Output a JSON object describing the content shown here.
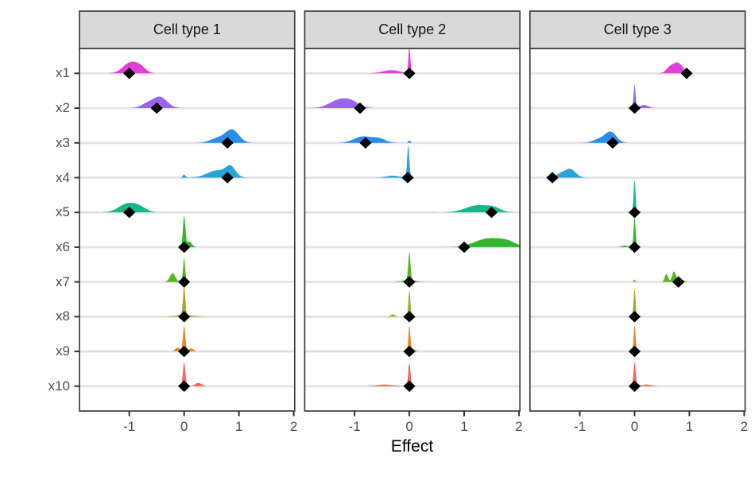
{
  "figure": {
    "background": "#FFFFFF",
    "panel_background": "#FFFFFF",
    "grid_color": "#E6E6E6",
    "panel_border_color": "#3C3C3C",
    "strip_fill": "#D9D9D9",
    "strip_text_color": "#141414",
    "axis_text_color": "#4D4D4D",
    "tick_color": "#333333",
    "point_color": "#000000"
  },
  "chart_data": {
    "type": "ridgeline",
    "title": "",
    "xlabel": "Effect",
    "ylabel": "",
    "legend": "none",
    "grid": "horizontal-major-only",
    "xlim": [
      -1.909,
      2.017
    ],
    "x_tick_values": [
      -1,
      0,
      1,
      2
    ],
    "x_tick_labels": [
      "-1",
      "0",
      "1",
      "2"
    ],
    "categories": [
      "x1",
      "x2",
      "x3",
      "x4",
      "x5",
      "x6",
      "x7",
      "x8",
      "x9",
      "x10"
    ],
    "colors": {
      "x1": "#E33FD7",
      "x2": "#9C63EB",
      "x3": "#2A8DEA",
      "x4": "#28A4DB",
      "x5": "#16B78C",
      "x6": "#2FB62E",
      "x7": "#5BB322",
      "x8": "#A9A42A",
      "x9": "#E08B26",
      "x10": "#F2615C"
    },
    "facets": [
      {
        "label": "Cell type 1",
        "rows": [
          {
            "var": "x1",
            "point": -1.0,
            "bumps": [
              [
                -0.97,
                0.14,
                14
              ],
              [
                -0.78,
                0.09,
                5
              ]
            ]
          },
          {
            "var": "x2",
            "point": -0.5,
            "bumps": [
              [
                -0.44,
                0.13,
                14
              ],
              [
                -0.68,
                0.11,
                5
              ]
            ]
          },
          {
            "var": "x3",
            "point": 0.79,
            "bumps": [
              [
                0.88,
                0.12,
                16
              ],
              [
                0.62,
                0.14,
                6
              ]
            ]
          },
          {
            "var": "x4",
            "point": 0.79,
            "bumps": [
              [
                0.85,
                0.09,
                12
              ],
              [
                0.6,
                0.18,
                9
              ],
              [
                0.0,
                0.025,
                4
              ]
            ]
          },
          {
            "var": "x5",
            "point": -1.0,
            "bumps": [
              [
                -1.03,
                0.16,
                11
              ],
              [
                -0.8,
                0.12,
                5
              ]
            ]
          },
          {
            "var": "x6",
            "point": 0.0,
            "bumps": [
              [
                0.0,
                0.022,
                38
              ],
              [
                0.09,
                0.05,
                7
              ]
            ]
          },
          {
            "var": "x7",
            "point": 0.0,
            "bumps": [
              [
                0.0,
                0.02,
                30
              ],
              [
                -0.21,
                0.05,
                11
              ]
            ]
          },
          {
            "var": "x8",
            "point": 0.0,
            "bumps": [
              [
                0.0,
                0.02,
                36
              ],
              [
                0.0,
                0.15,
                2.5
              ]
            ]
          },
          {
            "var": "x9",
            "point": 0.0,
            "bumps": [
              [
                0.0,
                0.022,
                32
              ],
              [
                -0.12,
                0.04,
                5
              ],
              [
                0.13,
                0.04,
                4
              ]
            ]
          },
          {
            "var": "x10",
            "point": 0.0,
            "bumps": [
              [
                0.0,
                0.022,
                30
              ],
              [
                0.26,
                0.06,
                4
              ]
            ]
          }
        ]
      },
      {
        "label": "Cell type 2",
        "rows": [
          {
            "var": "x1",
            "point": 0.0,
            "bumps": [
              [
                0.0,
                0.018,
                33
              ],
              [
                -0.33,
                0.16,
                4
              ]
            ]
          },
          {
            "var": "x2",
            "point": -0.9,
            "bumps": [
              [
                -1.28,
                0.18,
                10
              ],
              [
                -1.05,
                0.14,
                6
              ]
            ]
          },
          {
            "var": "x3",
            "point": -0.8,
            "bumps": [
              [
                -0.85,
                0.16,
                8
              ],
              [
                -0.55,
                0.12,
                5
              ],
              [
                0.0,
                0.02,
                3
              ]
            ]
          },
          {
            "var": "x4",
            "point": -0.03,
            "bumps": [
              [
                -0.02,
                0.02,
                40
              ],
              [
                -0.3,
                0.12,
                2.5
              ]
            ]
          },
          {
            "var": "x5",
            "point": 1.5,
            "bumps": [
              [
                1.25,
                0.22,
                9
              ],
              [
                1.55,
                0.12,
                4
              ]
            ]
          },
          {
            "var": "x6",
            "point": 1.0,
            "bumps": [
              [
                1.45,
                0.25,
                11
              ],
              [
                1.8,
                0.15,
                5
              ]
            ]
          },
          {
            "var": "x7",
            "point": 0.0,
            "bumps": [
              [
                0.0,
                0.02,
                35
              ],
              [
                0.0,
                0.12,
                2.5
              ]
            ]
          },
          {
            "var": "x8",
            "point": 0.0,
            "bumps": [
              [
                0.0,
                0.018,
                33
              ],
              [
                -0.3,
                0.04,
                3
              ]
            ]
          },
          {
            "var": "x9",
            "point": 0.0,
            "bumps": [
              [
                0.0,
                0.018,
                31
              ],
              [
                0.06,
                0.05,
                3
              ]
            ]
          },
          {
            "var": "x10",
            "point": 0.0,
            "bumps": [
              [
                0.0,
                0.02,
                29
              ],
              [
                -0.45,
                0.15,
                2
              ]
            ]
          }
        ]
      },
      {
        "label": "Cell type 3",
        "rows": [
          {
            "var": "x1",
            "point": 0.95,
            "bumps": [
              [
                0.79,
                0.09,
                13
              ],
              [
                0.64,
                0.07,
                6
              ]
            ]
          },
          {
            "var": "x2",
            "point": 0.0,
            "bumps": [
              [
                0.0,
                0.018,
                29
              ],
              [
                0.17,
                0.08,
                4
              ]
            ]
          },
          {
            "var": "x3",
            "point": -0.4,
            "bumps": [
              [
                -0.43,
                0.1,
                13
              ],
              [
                -0.63,
                0.12,
                5
              ]
            ]
          },
          {
            "var": "x4",
            "point": -1.5,
            "bumps": [
              [
                -1.18,
                0.1,
                11
              ],
              [
                -1.36,
                0.07,
                4
              ]
            ]
          },
          {
            "var": "x5",
            "point": 0.0,
            "bumps": [
              [
                0.0,
                0.018,
                40
              ]
            ]
          },
          {
            "var": "x6",
            "point": 0.0,
            "bumps": [
              [
                0.0,
                0.018,
                37
              ],
              [
                -0.18,
                0.06,
                2
              ]
            ]
          },
          {
            "var": "x7",
            "point": 0.8,
            "bumps": [
              [
                0.72,
                0.035,
                13
              ],
              [
                0.58,
                0.03,
                10
              ],
              [
                0.85,
                0.05,
                3
              ],
              [
                0.0,
                0.015,
                3
              ]
            ]
          },
          {
            "var": "x8",
            "point": 0.0,
            "bumps": [
              [
                0.0,
                0.018,
                35
              ]
            ]
          },
          {
            "var": "x9",
            "point": 0.0,
            "bumps": [
              [
                0.0,
                0.018,
                33
              ]
            ]
          },
          {
            "var": "x10",
            "point": 0.0,
            "bumps": [
              [
                0.0,
                0.02,
                30
              ],
              [
                0.22,
                0.09,
                2
              ]
            ]
          }
        ]
      }
    ]
  }
}
